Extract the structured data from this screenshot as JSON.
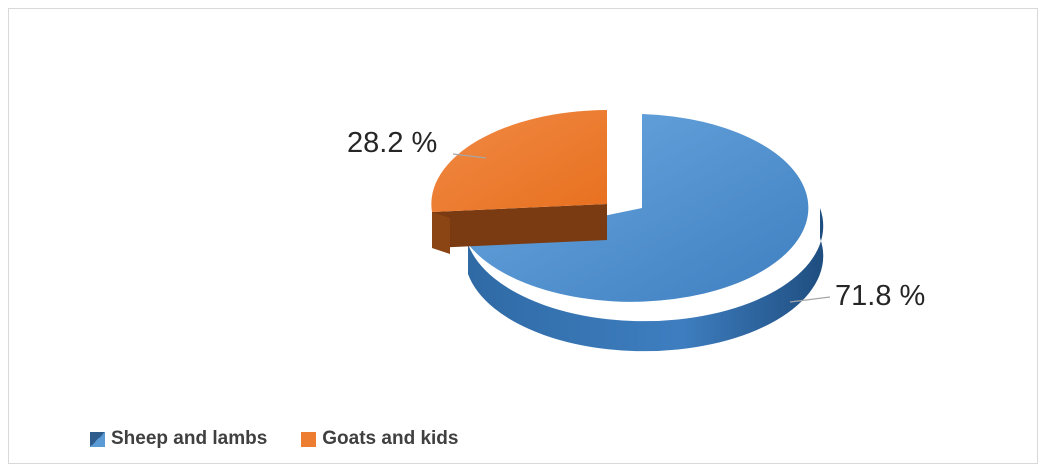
{
  "chart_data": {
    "type": "pie",
    "style": "3d-exploded",
    "series": [
      {
        "name": "Sheep and lambs",
        "value": 71.8,
        "label": "71.8 %",
        "color": "#5b9bd5"
      },
      {
        "name": "Goats and kids",
        "value": 28.2,
        "label": "28.2 %",
        "color": "#ed7d31"
      }
    ],
    "legend_position": "bottom-left"
  }
}
